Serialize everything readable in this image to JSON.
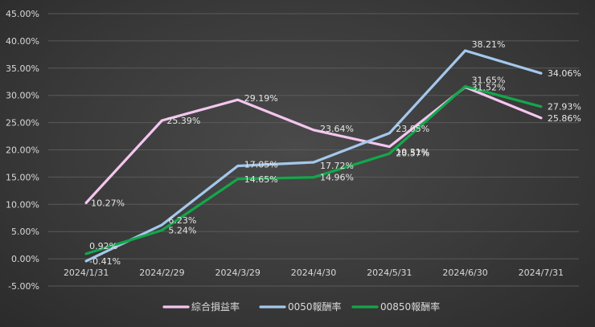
{
  "chart_data": {
    "type": "line",
    "title": "",
    "xlabel": "",
    "ylabel": "",
    "categories": [
      "2024/1/31",
      "2024/2/29",
      "2024/3/29",
      "2024/4/30",
      "2024/5/31",
      "2024/6/30",
      "2024/7/31"
    ],
    "y_ticks": [
      "-5.00%",
      "0.00%",
      "5.00%",
      "10.00%",
      "15.00%",
      "20.00%",
      "25.00%",
      "30.00%",
      "35.00%",
      "40.00%",
      "45.00%"
    ],
    "ylim": [
      -5,
      45
    ],
    "grid": true,
    "legend_position": "bottom",
    "series": [
      {
        "name": "綜合損益率",
        "color": "#f4c6ef",
        "values": [
          10.27,
          25.39,
          29.19,
          23.64,
          20.57,
          31.52,
          25.86
        ],
        "labels": [
          "10.27%",
          "25.39%",
          "29.19%",
          "23.64%",
          "20.57%",
          "31.52%",
          "25.86%"
        ]
      },
      {
        "name": "0050報酬率",
        "color": "#a4c8ec",
        "values": [
          -0.41,
          6.23,
          17.05,
          17.72,
          23.05,
          38.21,
          34.06
        ],
        "labels": [
          "-0.41%",
          "6.23%",
          "17.05%",
          "17.72%",
          "23.05%",
          "38.21%",
          "34.06%"
        ]
      },
      {
        "name": "00850報酬率",
        "color": "#12a84a",
        "values": [
          0.92,
          5.24,
          14.65,
          14.96,
          19.31,
          31.65,
          27.93
        ],
        "labels": [
          "0.92%",
          "5.24%",
          "14.65%",
          "14.96%",
          "19.31%",
          "31.65%",
          "27.93%"
        ]
      }
    ]
  }
}
